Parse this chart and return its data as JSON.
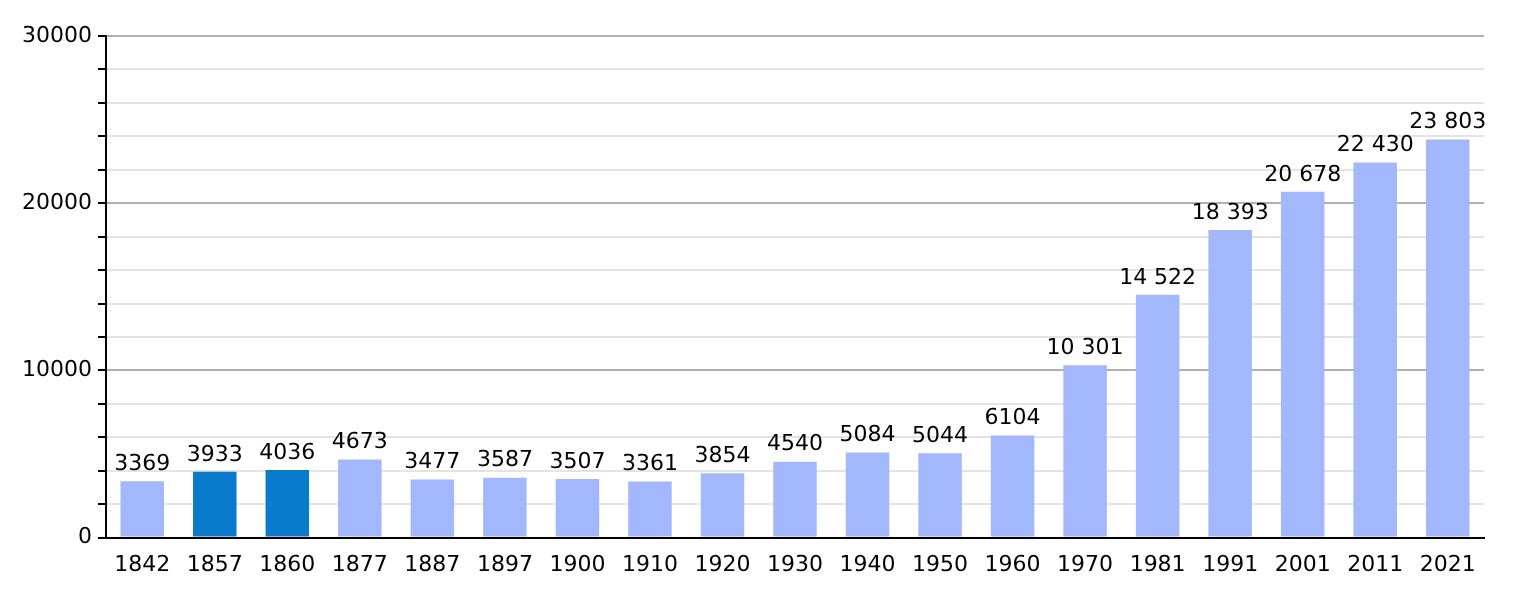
{
  "chart_data": {
    "type": "bar",
    "categories": [
      "1842",
      "1857",
      "1860",
      "1877",
      "1887",
      "1897",
      "1900",
      "1910",
      "1920",
      "1930",
      "1940",
      "1950",
      "1960",
      "1970",
      "1981",
      "1991",
      "2001",
      "2011",
      "2021"
    ],
    "values": [
      3369,
      3933,
      4036,
      4673,
      3477,
      3587,
      3507,
      3361,
      3854,
      4540,
      5084,
      5044,
      6104,
      10301,
      14522,
      18393,
      20678,
      22430,
      23803
    ],
    "value_labels": [
      "3369",
      "3933",
      "4036",
      "4673",
      "3477",
      "3587",
      "3507",
      "3361",
      "3854",
      "4540",
      "5084",
      "5044",
      "6104",
      "10 301",
      "14 522",
      "18 393",
      "20 678",
      "22 430",
      "23 803"
    ],
    "colors": [
      "#a3b7fd",
      "#0a7acc",
      "#0a7acc",
      "#a3b7fd",
      "#a3b7fd",
      "#a3b7fd",
      "#a3b7fd",
      "#a3b7fd",
      "#a3b7fd",
      "#a3b7fd",
      "#a3b7fd",
      "#a3b7fd",
      "#a3b7fd",
      "#a3b7fd",
      "#a3b7fd",
      "#a3b7fd",
      "#a3b7fd",
      "#a3b7fd",
      "#a3b7fd"
    ],
    "ylim": [
      0,
      30000
    ],
    "yticks": [
      0,
      {
        "value": 2000,
        "label": null
      },
      {
        "value": 4000,
        "label": null
      },
      {
        "value": 6000,
        "label": null
      },
      {
        "value": 8000,
        "label": null
      },
      10000,
      {
        "value": 12000,
        "label": null
      },
      {
        "value": 14000,
        "label": null
      },
      {
        "value": 16000,
        "label": null
      },
      {
        "value": 18000,
        "label": null
      },
      20000,
      {
        "value": 22000,
        "label": null
      },
      {
        "value": 24000,
        "label": null
      },
      {
        "value": 26000,
        "label": null
      },
      {
        "value": 28000,
        "label": null
      },
      30000
    ],
    "grid": "y"
  }
}
